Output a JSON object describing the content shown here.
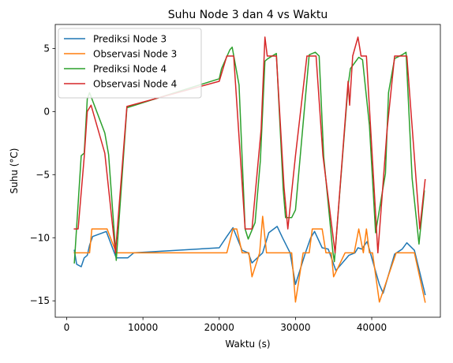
{
  "chart_data": {
    "type": "line",
    "title": "Suhu Node 3 dan 4 vs Waktu",
    "xlabel": "Waktu (s)",
    "ylabel": "Suhu (°C)",
    "xlim": [
      -1500,
      49000
    ],
    "ylim": [
      -16.3,
      6.9
    ],
    "x_ticks": [
      0,
      10000,
      20000,
      30000,
      40000
    ],
    "x_tick_labels": [
      "0",
      "10000",
      "20000",
      "30000",
      "40000"
    ],
    "y_ticks": [
      -15,
      -10,
      -5,
      0,
      5
    ],
    "y_tick_labels": [
      "−15",
      "−10",
      "−5",
      "0",
      "5"
    ],
    "grid": false,
    "legend_position": "top-left",
    "series": [
      {
        "name": "Prediksi Node 3",
        "color": "#1f77b4",
        "points": [
          [
            1000,
            -11.0
          ],
          [
            1300,
            -12.1
          ],
          [
            1900,
            -12.3
          ],
          [
            2300,
            -11.6
          ],
          [
            2700,
            -11.4
          ],
          [
            3000,
            -10.6
          ],
          [
            3400,
            -9.9
          ],
          [
            5200,
            -9.5
          ],
          [
            6500,
            -11.6
          ],
          [
            8000,
            -11.6
          ],
          [
            8800,
            -11.2
          ],
          [
            20000,
            -10.8
          ],
          [
            21000,
            -9.9
          ],
          [
            21800,
            -9.2
          ],
          [
            23000,
            -11.0
          ],
          [
            23800,
            -11.2
          ],
          [
            24300,
            -12.0
          ],
          [
            25700,
            -11.2
          ],
          [
            26500,
            -9.6
          ],
          [
            27600,
            -9.1
          ],
          [
            28300,
            -10.0
          ],
          [
            29300,
            -11.2
          ],
          [
            30000,
            -13.7
          ],
          [
            31300,
            -11.2
          ],
          [
            32000,
            -10.0
          ],
          [
            32500,
            -9.5
          ],
          [
            33500,
            -10.8
          ],
          [
            34300,
            -10.9
          ],
          [
            35300,
            -12.6
          ],
          [
            37000,
            -11.4
          ],
          [
            37800,
            -11.2
          ],
          [
            38200,
            -10.8
          ],
          [
            38700,
            -10.9
          ],
          [
            39400,
            -10.3
          ],
          [
            40100,
            -11.8
          ],
          [
            41000,
            -13.7
          ],
          [
            41500,
            -14.4
          ],
          [
            43000,
            -11.3
          ],
          [
            44000,
            -10.9
          ],
          [
            44600,
            -10.4
          ],
          [
            45600,
            -11.0
          ],
          [
            47000,
            -14.5
          ]
        ]
      },
      {
        "name": "Observasi Node 3",
        "color": "#ff7f0e",
        "points": [
          [
            1000,
            -11.2
          ],
          [
            1300,
            -11.2
          ],
          [
            3000,
            -11.2
          ],
          [
            3300,
            -9.3
          ],
          [
            5300,
            -9.3
          ],
          [
            6500,
            -11.2
          ],
          [
            8000,
            -11.2
          ],
          [
            9000,
            -11.2
          ],
          [
            20000,
            -11.2
          ],
          [
            21000,
            -11.2
          ],
          [
            21800,
            -9.3
          ],
          [
            22300,
            -9.3
          ],
          [
            23000,
            -11.2
          ],
          [
            23900,
            -11.2
          ],
          [
            24300,
            -13.1
          ],
          [
            25300,
            -11.2
          ],
          [
            25700,
            -8.3
          ],
          [
            26200,
            -11.2
          ],
          [
            28700,
            -11.2
          ],
          [
            29500,
            -11.2
          ],
          [
            30000,
            -15.1
          ],
          [
            31000,
            -11.2
          ],
          [
            31800,
            -11.2
          ],
          [
            32200,
            -9.3
          ],
          [
            33500,
            -9.3
          ],
          [
            34000,
            -11.2
          ],
          [
            34700,
            -11.2
          ],
          [
            35000,
            -13.1
          ],
          [
            36500,
            -11.2
          ],
          [
            37700,
            -11.2
          ],
          [
            38300,
            -9.3
          ],
          [
            38900,
            -11.2
          ],
          [
            39300,
            -9.3
          ],
          [
            39700,
            -11.2
          ],
          [
            40100,
            -11.2
          ],
          [
            41000,
            -15.1
          ],
          [
            43200,
            -11.2
          ],
          [
            45600,
            -11.2
          ],
          [
            47000,
            -15.1
          ]
        ]
      },
      {
        "name": "Prediksi Node 4",
        "color": "#2ca02c",
        "points": [
          [
            1000,
            -12.0
          ],
          [
            1900,
            -3.5
          ],
          [
            2300,
            -3.3
          ],
          [
            2700,
            1.0
          ],
          [
            3000,
            1.5
          ],
          [
            5000,
            -1.7
          ],
          [
            5500,
            -3.4
          ],
          [
            6500,
            -11.8
          ],
          [
            7900,
            0.3
          ],
          [
            20000,
            2.6
          ],
          [
            20300,
            3.4
          ],
          [
            21400,
            4.9
          ],
          [
            21700,
            5.1
          ],
          [
            22600,
            2.1
          ],
          [
            23400,
            -9.3
          ],
          [
            23800,
            -10.1
          ],
          [
            24700,
            -8.8
          ],
          [
            25400,
            -3.9
          ],
          [
            26000,
            4.0
          ],
          [
            26400,
            4.2
          ],
          [
            27500,
            4.6
          ],
          [
            28400,
            -6.2
          ],
          [
            28700,
            -8.4
          ],
          [
            29500,
            -8.4
          ],
          [
            30000,
            -7.8
          ],
          [
            31800,
            4.5
          ],
          [
            32600,
            4.7
          ],
          [
            33100,
            4.4
          ],
          [
            33700,
            -3.6
          ],
          [
            34900,
            -11.1
          ],
          [
            35100,
            -11.9
          ],
          [
            36900,
            2.1
          ],
          [
            37200,
            3.4
          ],
          [
            38300,
            4.3
          ],
          [
            38800,
            4.1
          ],
          [
            39700,
            -1.1
          ],
          [
            40500,
            -9.6
          ],
          [
            41800,
            -4.9
          ],
          [
            42200,
            1.5
          ],
          [
            43000,
            4.2
          ],
          [
            44000,
            4.5
          ],
          [
            44500,
            4.7
          ],
          [
            45300,
            -5.3
          ],
          [
            46200,
            -10.5
          ],
          [
            46900,
            -6.3
          ]
        ]
      },
      {
        "name": "Observasi Node 4",
        "color": "#d62728",
        "points": [
          [
            1000,
            -9.3
          ],
          [
            1500,
            -9.3
          ],
          [
            2300,
            -3.6
          ],
          [
            2700,
            0.0
          ],
          [
            3200,
            0.5
          ],
          [
            5000,
            -3.3
          ],
          [
            6400,
            -11.2
          ],
          [
            7900,
            0.4
          ],
          [
            20000,
            2.4
          ],
          [
            21000,
            4.4
          ],
          [
            21900,
            4.4
          ],
          [
            23400,
            -9.3
          ],
          [
            24300,
            -9.3
          ],
          [
            25500,
            -1.4
          ],
          [
            26000,
            5.9
          ],
          [
            26300,
            4.4
          ],
          [
            26600,
            4.4
          ],
          [
            27500,
            4.4
          ],
          [
            28500,
            -6.0
          ],
          [
            29000,
            -9.3
          ],
          [
            30000,
            -3.5
          ],
          [
            31500,
            4.4
          ],
          [
            32300,
            4.4
          ],
          [
            32700,
            4.4
          ],
          [
            33600,
            -3.5
          ],
          [
            35200,
            -11.2
          ],
          [
            36900,
            2.4
          ],
          [
            37100,
            0.5
          ],
          [
            37500,
            4.4
          ],
          [
            38200,
            5.9
          ],
          [
            38600,
            4.4
          ],
          [
            39300,
            4.4
          ],
          [
            40800,
            -11.2
          ],
          [
            42000,
            -1.5
          ],
          [
            43000,
            4.4
          ],
          [
            44600,
            4.4
          ],
          [
            46300,
            -9.3
          ],
          [
            47000,
            -5.4
          ]
        ]
      }
    ]
  }
}
